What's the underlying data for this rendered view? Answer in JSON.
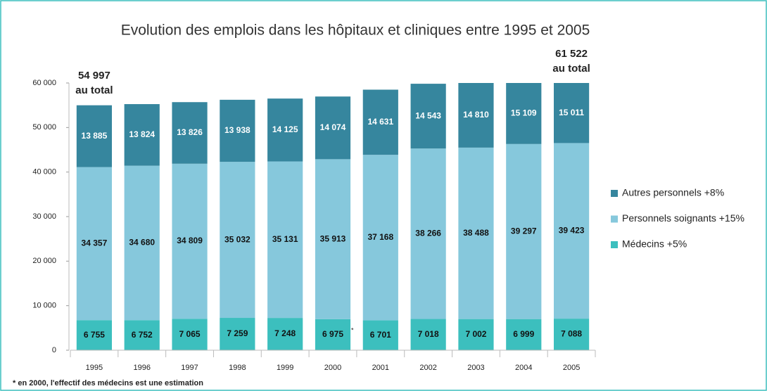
{
  "chart_data": {
    "type": "stacked_bar",
    "title": "Evolution des emplois dans les hôpitaux et cliniques entre 1995 et 2005",
    "categories": [
      "1995",
      "1996",
      "1997",
      "1998",
      "1999",
      "2000",
      "2001",
      "2002",
      "2003",
      "2004",
      "2005"
    ],
    "series": [
      {
        "name": "Médecins +5%",
        "color": "#3cbfbe",
        "values": [
          6755,
          6752,
          7065,
          7259,
          7248,
          6975,
          6701,
          7018,
          7002,
          6999,
          7088
        ],
        "value_labels": [
          "6 755",
          "6 752",
          "7 065",
          "7 259",
          "7 248",
          "6 975",
          "6 701",
          "7 018",
          "7 002",
          "6 999",
          "7 088"
        ]
      },
      {
        "name": "Personnels soignants +15%",
        "color": "#86c8dc",
        "values": [
          34357,
          34680,
          34809,
          35032,
          35131,
          35913,
          37168,
          38266,
          38488,
          39297,
          39423
        ],
        "value_labels": [
          "34 357",
          "34 680",
          "34 809",
          "35 032",
          "35 131",
          "35 913",
          "37 168",
          "38 266",
          "38 488",
          "39 297",
          "39 423"
        ]
      },
      {
        "name": "Autres personnels +8%",
        "color": "#36869e",
        "values": [
          13885,
          13824,
          13826,
          13938,
          14125,
          14074,
          14631,
          14543,
          14810,
          15109,
          15011
        ],
        "value_labels": [
          "13 885",
          "13 824",
          "13 826",
          "13 938",
          "14 125",
          "14 074",
          "14 631",
          "14 543",
          "14 810",
          "15 109",
          "15 011"
        ]
      }
    ],
    "ylim": [
      0,
      60000
    ],
    "yticks": [
      0,
      {
        "value": 10000,
        "label": "10 000"
      },
      {
        "value": 20000,
        "label": "20 000"
      },
      {
        "value": 30000,
        "label": "30 000"
      },
      {
        "value": 40000,
        "label": "40 000"
      },
      {
        "value": 50000,
        "label": "50 000"
      },
      {
        "value": 60000,
        "label": "60 000"
      }
    ],
    "annotations": [
      {
        "lines": [
          "54 997",
          "au total"
        ]
      },
      {
        "lines": [
          "61 522",
          "au total"
        ]
      }
    ],
    "asterisk": "*",
    "footnote": "* en 2000, l'effectif des médecins est une estimation",
    "legend": "right"
  }
}
